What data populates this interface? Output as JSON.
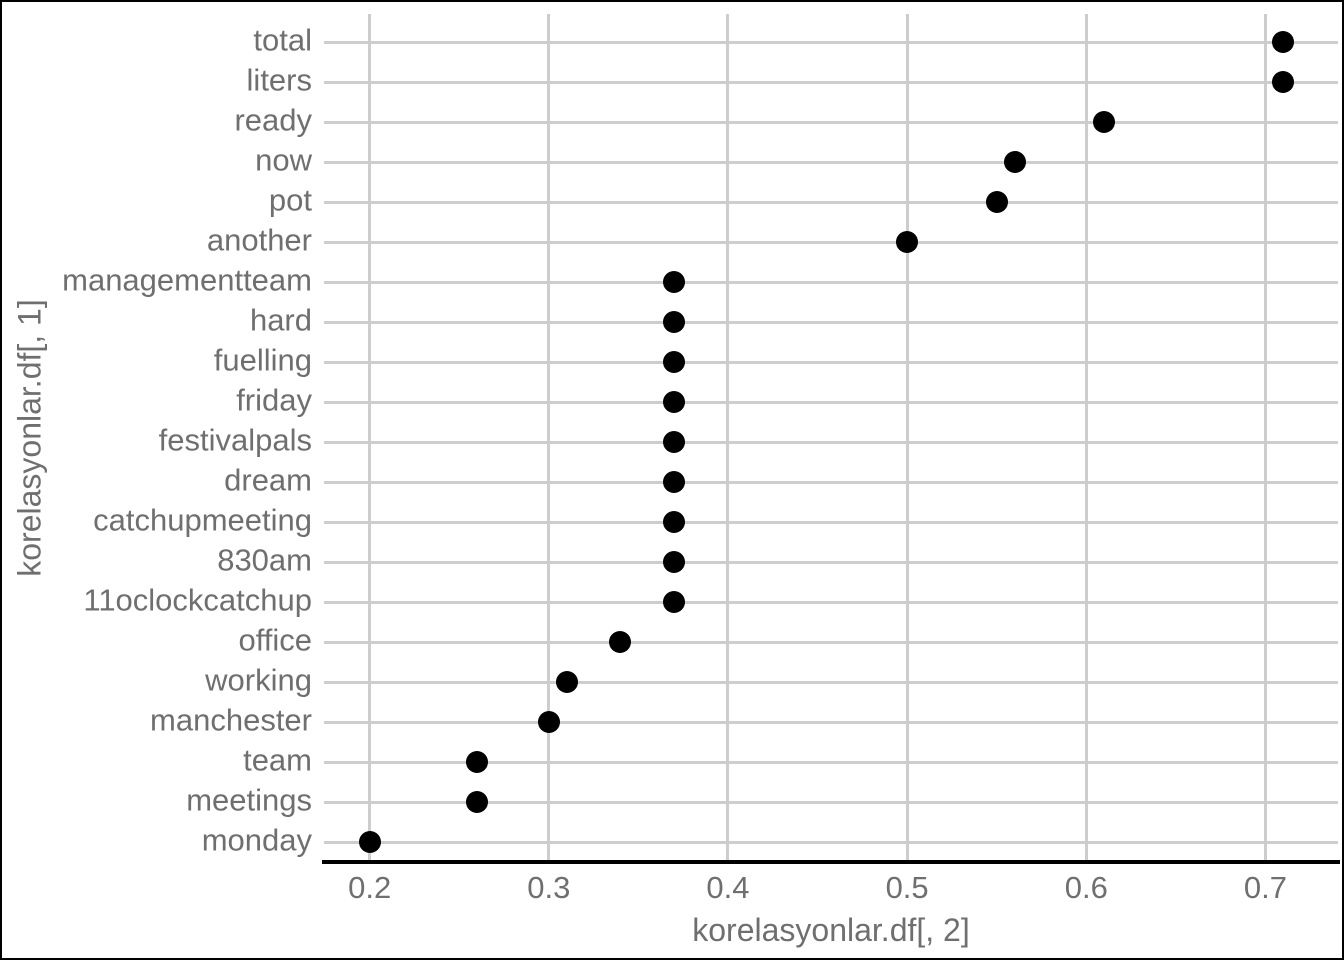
{
  "chart_data": {
    "type": "scatter",
    "subtype": "horizontal-dot-plot",
    "title": "",
    "xlabel": "korelasyonlar.df[, 2]",
    "ylabel": "korelasyonlar.df[, 1]",
    "categories": [
      "total",
      "liters",
      "ready",
      "now",
      "pot",
      "another",
      "managementteam",
      "hard",
      "fuelling",
      "friday",
      "festivalpals",
      "dream",
      "catchupmeeting",
      "830am",
      "11oclockcatchup",
      "office",
      "working",
      "manchester",
      "team",
      "meetings",
      "monday"
    ],
    "values": [
      0.71,
      0.71,
      0.61,
      0.56,
      0.55,
      0.5,
      0.37,
      0.37,
      0.37,
      0.37,
      0.37,
      0.37,
      0.37,
      0.37,
      0.37,
      0.34,
      0.31,
      0.3,
      0.26,
      0.26,
      0.2
    ],
    "x_ticks": [
      "0.2",
      "0.3",
      "0.4",
      "0.5",
      "0.6",
      "0.7"
    ],
    "x_tick_values": [
      0.2,
      0.3,
      0.4,
      0.5,
      0.6,
      0.7
    ],
    "xlim": [
      0.1745,
      0.7405
    ],
    "grid": "major-only",
    "legend": "none",
    "colors": {
      "point": "#000000",
      "grid": "#cdcdcd",
      "text": "#6f6f6f",
      "axis_line": "#000000",
      "background": "#ffffff",
      "border": "#000000"
    }
  }
}
